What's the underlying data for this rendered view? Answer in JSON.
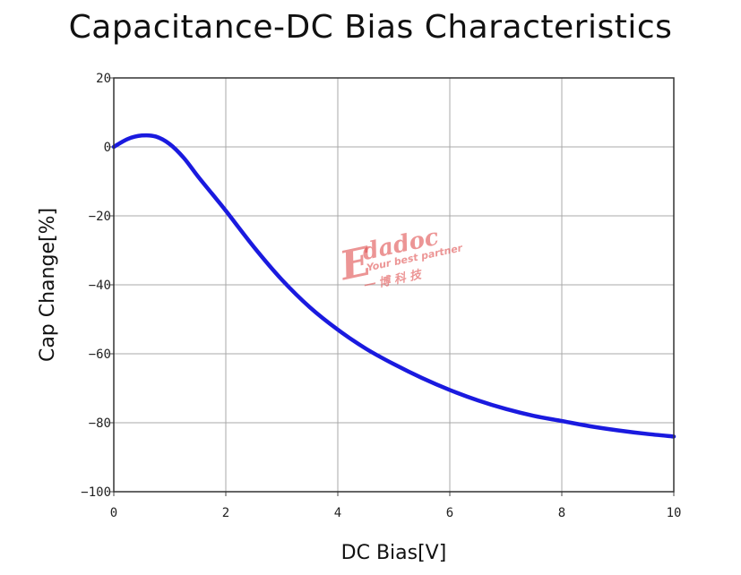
{
  "chart_data": {
    "type": "line",
    "title": "Capacitance-DC Bias Characteristics",
    "xlabel": "DC Bias[V]",
    "ylabel": "Cap Change[%]",
    "xlim": [
      0,
      10
    ],
    "ylim": [
      -100,
      20
    ],
    "x_ticks": [
      0,
      2,
      4,
      6,
      8,
      10
    ],
    "y_ticks": [
      20,
      0,
      -20,
      -40,
      -60,
      -80,
      -100
    ],
    "x_tick_labels": [
      "0",
      "2",
      "4",
      "6",
      "8",
      "10"
    ],
    "y_tick_labels": [
      "20",
      "0",
      "−20",
      "−40",
      "−60",
      "−80",
      "−100"
    ],
    "grid": true,
    "legend": "none",
    "series": [
      {
        "color": "#1a1adf",
        "x": [
          0,
          0.25,
          0.5,
          0.75,
          1.0,
          1.25,
          1.5,
          1.75,
          2.0,
          2.5,
          3.0,
          3.5,
          4.0,
          4.5,
          5.0,
          5.5,
          6.0,
          6.5,
          7.0,
          7.5,
          8.0,
          8.5,
          9.0,
          9.5,
          10.0
        ],
        "y": [
          0,
          2.3,
          3.3,
          3.0,
          0.8,
          -3.2,
          -8.5,
          -13.5,
          -18.5,
          -29,
          -38.5,
          -46.5,
          -53,
          -58.5,
          -63,
          -67,
          -70.5,
          -73.5,
          -76,
          -78,
          -79.5,
          -81,
          -82.2,
          -83.2,
          -84
        ]
      }
    ]
  },
  "watermark": {
    "brand": "Edadoc",
    "tagline": "Your best partner",
    "chinese": "一  博  科  技"
  }
}
